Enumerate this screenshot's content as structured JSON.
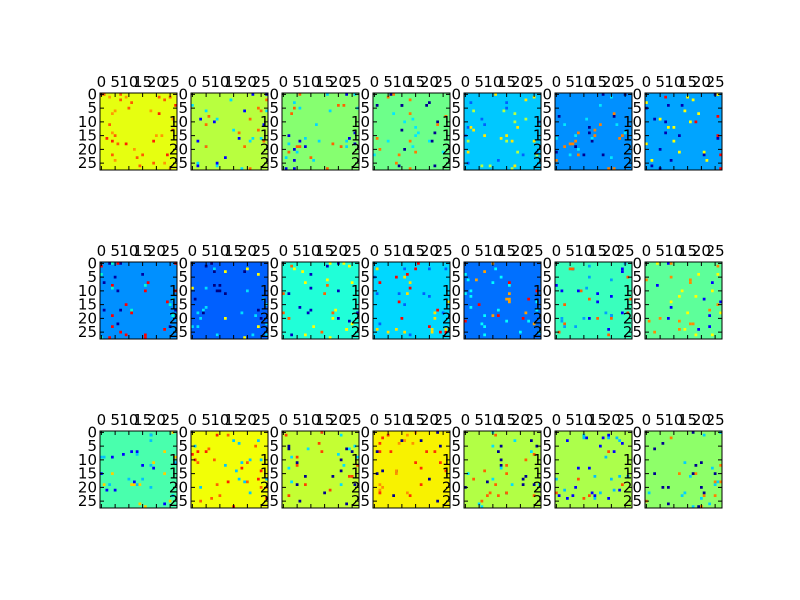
{
  "chart_data": {
    "type": "heatmap",
    "layout": {
      "rows": 3,
      "cols": 7
    },
    "colormap": "jet",
    "cell_grid": [
      28,
      28
    ],
    "x_ticks": [
      0,
      5,
      10,
      15,
      20,
      25
    ],
    "y_ticks": [
      0,
      5,
      10,
      15,
      20,
      25
    ],
    "x_tick_labels": [
      "0",
      "5",
      "10",
      "15",
      "20",
      "25"
    ],
    "y_tick_labels": [
      "0",
      "5",
      "10",
      "15",
      "20",
      "25"
    ],
    "panels": [
      {
        "base": "#e6ff10",
        "speckle": [
          "#ff5a00",
          "#ff2200",
          "#ff9a00"
        ]
      },
      {
        "base": "#b8ff3f",
        "speckle": [
          "#0000ff",
          "#ff6a00",
          "#00e0ff"
        ]
      },
      {
        "base": "#86ff70",
        "speckle": [
          "#0000e0",
          "#ff6000",
          "#00d8ff"
        ]
      },
      {
        "base": "#6dff8a",
        "speckle": [
          "#00008f",
          "#ff7a00",
          "#00e8ff"
        ]
      },
      {
        "base": "#00c8ff",
        "speckle": [
          "#ffe800",
          "#0060ff",
          "#b8ff3f"
        ]
      },
      {
        "base": "#0090ff",
        "speckle": [
          "#00e8ff",
          "#000090",
          "#ff8000"
        ]
      },
      {
        "base": "#00a4ff",
        "speckle": [
          "#ff0000",
          "#ffff00",
          "#0000b0"
        ]
      },
      {
        "base": "#0090ff",
        "speckle": [
          "#ff0000",
          "#00ffd0",
          "#0000a0"
        ]
      },
      {
        "base": "#0060ff",
        "speckle": [
          "#ffff00",
          "#00e0ff",
          "#000080"
        ]
      },
      {
        "base": "#20ffd8",
        "speckle": [
          "#ff6000",
          "#0000c0",
          "#ffff00"
        ]
      },
      {
        "base": "#00d8ff",
        "speckle": [
          "#ffe000",
          "#0060ff",
          "#ff0000"
        ]
      },
      {
        "base": "#0070ff",
        "speckle": [
          "#ff0000",
          "#ffa000",
          "#00ffff"
        ]
      },
      {
        "base": "#39ffbd",
        "speckle": [
          "#ff6000",
          "#0000ff",
          "#00a0ff"
        ]
      },
      {
        "base": "#5dff9a",
        "speckle": [
          "#ff8a00",
          "#0000ff",
          "#ffff00"
        ]
      },
      {
        "base": "#49ffad",
        "speckle": [
          "#ffd000",
          "#0000ff",
          "#00c0ff"
        ]
      },
      {
        "base": "#f2ff06",
        "speckle": [
          "#ff6000",
          "#00c8ff",
          "#ff2000"
        ]
      },
      {
        "base": "#c4ff33",
        "speckle": [
          "#ff4000",
          "#00008f",
          "#00e0ff"
        ]
      },
      {
        "base": "#f8f200",
        "speckle": [
          "#ff3000",
          "#00008f",
          "#ff9000"
        ]
      },
      {
        "base": "#b2ff45",
        "speckle": [
          "#ff6000",
          "#00008f",
          "#00e0ff"
        ]
      },
      {
        "base": "#acff4b",
        "speckle": [
          "#ff5000",
          "#0000ff",
          "#00c0ff"
        ]
      },
      {
        "base": "#8eff69",
        "speckle": [
          "#000090",
          "#ff8000",
          "#00d0ff"
        ]
      }
    ]
  }
}
